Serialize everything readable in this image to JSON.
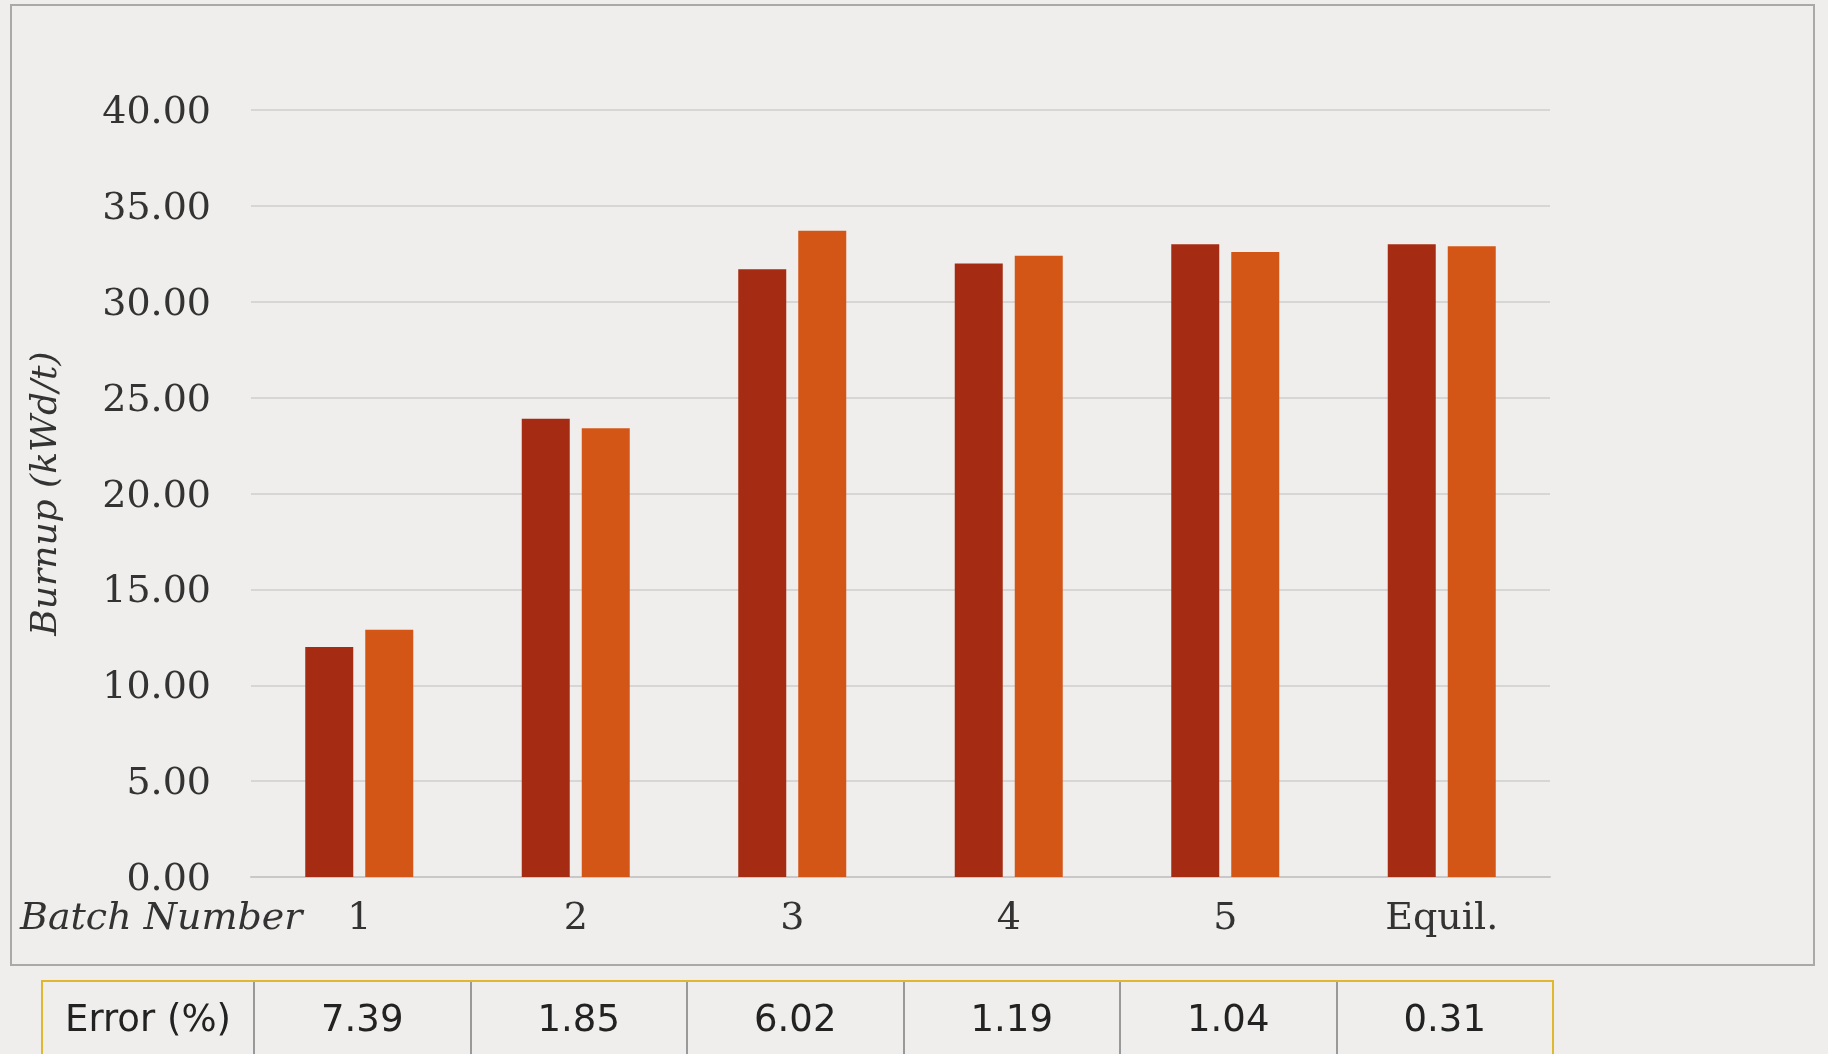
{
  "chart_data": {
    "type": "bar",
    "xlabel": "Batch Number",
    "ylabel": "Burnup (kWd/t)",
    "categories": [
      "1",
      "2",
      "3",
      "4",
      "5",
      "Equil."
    ],
    "series": [
      {
        "color": "#a52c12",
        "values": [
          12.0,
          23.9,
          31.7,
          32.0,
          33.0,
          33.0
        ]
      },
      {
        "color": "#d45617",
        "values": [
          12.9,
          23.4,
          33.7,
          32.4,
          32.6,
          32.9
        ]
      }
    ],
    "ylim": [
      0,
      40
    ],
    "yticks": [
      {
        "value": 0,
        "label": "0.00"
      },
      {
        "value": 5,
        "label": "5.00"
      },
      {
        "value": 10,
        "label": "10.00"
      },
      {
        "value": 15,
        "label": "15.00"
      },
      {
        "value": 20,
        "label": "20.00"
      },
      {
        "value": 25,
        "label": "25.00"
      },
      {
        "value": 30,
        "label": "30.00"
      },
      {
        "value": 35,
        "label": "35.00"
      },
      {
        "value": 40,
        "label": "40.00"
      }
    ],
    "grid": "y",
    "annotations": [
      "Error (%)",
      "7.39",
      "1.85",
      "6.02",
      "1.19",
      "1.04",
      "0.31"
    ]
  }
}
